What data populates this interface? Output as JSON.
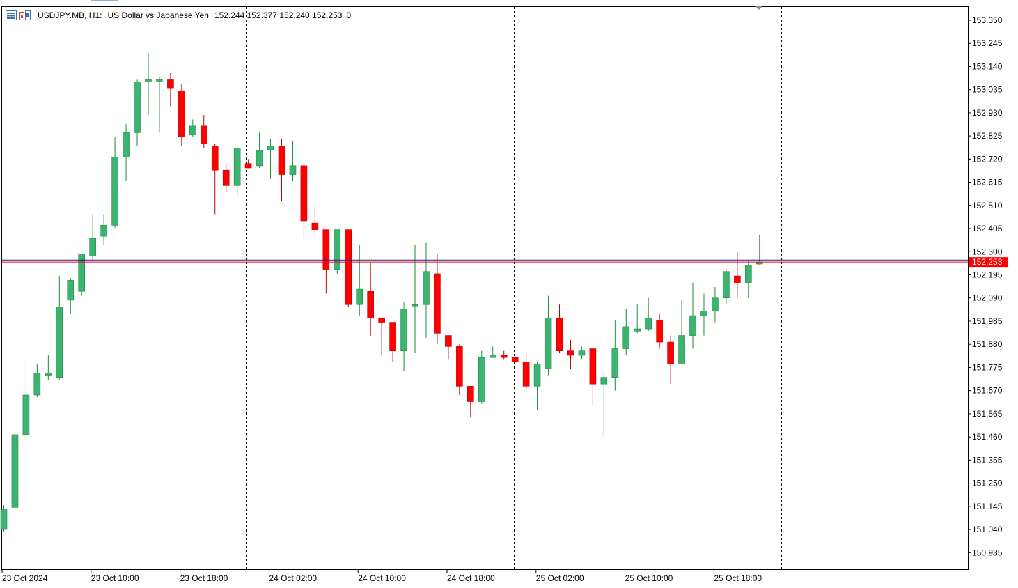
{
  "header": {
    "symbol": "USDJPY.MB, H1:",
    "description": "US Dollar vs Japanese Yen",
    "ohlc": "152.244 152.377 152.240 152.253",
    "volume": "0",
    "icons": [
      "chart-list-icon",
      "chart-objects-icon"
    ]
  },
  "colors": {
    "bull": "#3cb371",
    "bear": "#ff0000",
    "wick_bull": "#1e8a3a",
    "wick_bear": "#c00000",
    "bid_line": "#ff0000",
    "ask_line": "#1a1aa8",
    "price_tag_bg": "#ff0000",
    "price_tag_top": "#1a1aa8"
  },
  "chart_data": {
    "type": "candlestick",
    "timeframe": "H1",
    "x_tick_labels": [
      "23 Oct 2024",
      "23 Oct 10:00",
      "23 Oct 18:00",
      "24 Oct 02:00",
      "24 Oct 10:00",
      "24 Oct 18:00",
      "25 Oct 02:00",
      "25 Oct 10:00",
      "25 Oct 18:00"
    ],
    "y_tick_labels": [
      "153.350",
      "153.245",
      "153.140",
      "153.035",
      "152.930",
      "152.825",
      "152.720",
      "152.615",
      "152.510",
      "152.405",
      "152.300",
      "152.195",
      "152.090",
      "151.985",
      "151.880",
      "151.775",
      "151.670",
      "151.565",
      "151.460",
      "151.355",
      "151.250",
      "151.145",
      "151.040",
      "150.935"
    ],
    "ylim": [
      150.86,
      153.41
    ],
    "current_price": "152.253",
    "ask_price": 152.262,
    "candles": [
      {
        "o": 151.04,
        "h": 151.15,
        "l": 151.03,
        "c": 151.13
      },
      {
        "o": 151.14,
        "h": 151.48,
        "l": 151.13,
        "c": 151.47
      },
      {
        "o": 151.47,
        "h": 151.8,
        "l": 151.44,
        "c": 151.65
      },
      {
        "o": 151.65,
        "h": 151.79,
        "l": 151.64,
        "c": 151.75
      },
      {
        "o": 151.74,
        "h": 151.83,
        "l": 151.72,
        "c": 151.75
      },
      {
        "o": 151.73,
        "h": 152.19,
        "l": 151.72,
        "c": 152.05
      },
      {
        "o": 152.08,
        "h": 152.18,
        "l": 152.02,
        "c": 152.17
      },
      {
        "o": 152.12,
        "h": 152.29,
        "l": 152.1,
        "c": 152.29
      },
      {
        "o": 152.28,
        "h": 152.47,
        "l": 152.26,
        "c": 152.36
      },
      {
        "o": 152.37,
        "h": 152.47,
        "l": 152.33,
        "c": 152.42
      },
      {
        "o": 152.42,
        "h": 152.82,
        "l": 152.41,
        "c": 152.73
      },
      {
        "o": 152.73,
        "h": 152.88,
        "l": 152.62,
        "c": 152.84
      },
      {
        "o": 152.84,
        "h": 153.08,
        "l": 152.78,
        "c": 153.07
      },
      {
        "o": 153.07,
        "h": 153.2,
        "l": 152.92,
        "c": 153.08
      },
      {
        "o": 153.08,
        "h": 153.09,
        "l": 152.84,
        "c": 153.08
      },
      {
        "o": 153.08,
        "h": 153.11,
        "l": 152.96,
        "c": 153.04
      },
      {
        "o": 153.03,
        "h": 153.06,
        "l": 152.78,
        "c": 152.82
      },
      {
        "o": 152.83,
        "h": 152.9,
        "l": 152.82,
        "c": 152.87
      },
      {
        "o": 152.87,
        "h": 152.92,
        "l": 152.77,
        "c": 152.79
      },
      {
        "o": 152.78,
        "h": 152.79,
        "l": 152.47,
        "c": 152.67
      },
      {
        "o": 152.67,
        "h": 152.7,
        "l": 152.57,
        "c": 152.6
      },
      {
        "o": 152.6,
        "h": 152.78,
        "l": 152.55,
        "c": 152.77
      },
      {
        "o": 152.7,
        "h": 152.72,
        "l": 152.68,
        "c": 152.68
      },
      {
        "o": 152.69,
        "h": 152.84,
        "l": 152.68,
        "c": 152.76
      },
      {
        "o": 152.76,
        "h": 152.81,
        "l": 152.63,
        "c": 152.78
      },
      {
        "o": 152.78,
        "h": 152.81,
        "l": 152.53,
        "c": 152.65
      },
      {
        "o": 152.65,
        "h": 152.8,
        "l": 152.62,
        "c": 152.69
      },
      {
        "o": 152.69,
        "h": 152.69,
        "l": 152.36,
        "c": 152.44
      },
      {
        "o": 152.43,
        "h": 152.51,
        "l": 152.37,
        "c": 152.4
      },
      {
        "o": 152.4,
        "h": 152.4,
        "l": 152.11,
        "c": 152.22
      },
      {
        "o": 152.22,
        "h": 152.4,
        "l": 152.2,
        "c": 152.4
      },
      {
        "o": 152.4,
        "h": 152.4,
        "l": 152.05,
        "c": 152.06
      },
      {
        "o": 152.06,
        "h": 152.33,
        "l": 152.01,
        "c": 152.13
      },
      {
        "o": 152.12,
        "h": 152.25,
        "l": 151.92,
        "c": 152.0
      },
      {
        "o": 152.0,
        "h": 152.0,
        "l": 151.83,
        "c": 151.98
      },
      {
        "o": 151.98,
        "h": 151.98,
        "l": 151.8,
        "c": 151.85
      },
      {
        "o": 151.85,
        "h": 152.07,
        "l": 151.76,
        "c": 152.04
      },
      {
        "o": 152.06,
        "h": 152.33,
        "l": 151.84,
        "c": 152.06
      },
      {
        "o": 152.06,
        "h": 152.34,
        "l": 151.91,
        "c": 152.21
      },
      {
        "o": 152.2,
        "h": 152.29,
        "l": 151.88,
        "c": 151.93
      },
      {
        "o": 151.92,
        "h": 151.92,
        "l": 151.81,
        "c": 151.87
      },
      {
        "o": 151.87,
        "h": 151.88,
        "l": 151.65,
        "c": 151.69
      },
      {
        "o": 151.69,
        "h": 151.69,
        "l": 151.55,
        "c": 151.62
      },
      {
        "o": 151.62,
        "h": 151.85,
        "l": 151.61,
        "c": 151.82
      },
      {
        "o": 151.82,
        "h": 151.87,
        "l": 151.82,
        "c": 151.83
      },
      {
        "o": 151.83,
        "h": 151.85,
        "l": 151.81,
        "c": 151.82
      },
      {
        "o": 151.82,
        "h": 151.83,
        "l": 151.79,
        "c": 151.8
      },
      {
        "o": 151.8,
        "h": 151.84,
        "l": 151.68,
        "c": 151.69
      },
      {
        "o": 151.69,
        "h": 151.8,
        "l": 151.58,
        "c": 151.79
      },
      {
        "o": 151.77,
        "h": 152.1,
        "l": 151.74,
        "c": 152.0
      },
      {
        "o": 152.0,
        "h": 152.06,
        "l": 151.84,
        "c": 151.85
      },
      {
        "o": 151.85,
        "h": 151.9,
        "l": 151.77,
        "c": 151.83
      },
      {
        "o": 151.83,
        "h": 151.87,
        "l": 151.81,
        "c": 151.85
      },
      {
        "o": 151.86,
        "h": 151.86,
        "l": 151.6,
        "c": 151.7
      },
      {
        "o": 151.7,
        "h": 151.76,
        "l": 151.46,
        "c": 151.73
      },
      {
        "o": 151.73,
        "h": 151.99,
        "l": 151.67,
        "c": 151.86
      },
      {
        "o": 151.86,
        "h": 152.04,
        "l": 151.83,
        "c": 151.96
      },
      {
        "o": 151.94,
        "h": 152.06,
        "l": 151.93,
        "c": 151.95
      },
      {
        "o": 151.95,
        "h": 152.09,
        "l": 151.94,
        "c": 152.0
      },
      {
        "o": 151.99,
        "h": 152.02,
        "l": 151.86,
        "c": 151.89
      },
      {
        "o": 151.89,
        "h": 151.92,
        "l": 151.7,
        "c": 151.79
      },
      {
        "o": 151.79,
        "h": 152.08,
        "l": 151.79,
        "c": 151.92
      },
      {
        "o": 151.92,
        "h": 152.16,
        "l": 151.86,
        "c": 152.01
      },
      {
        "o": 152.01,
        "h": 152.11,
        "l": 151.92,
        "c": 152.03
      },
      {
        "o": 152.03,
        "h": 152.14,
        "l": 151.98,
        "c": 152.09
      },
      {
        "o": 152.09,
        "h": 152.22,
        "l": 152.06,
        "c": 152.21
      },
      {
        "o": 152.19,
        "h": 152.3,
        "l": 152.09,
        "c": 152.16
      },
      {
        "o": 152.16,
        "h": 152.26,
        "l": 152.09,
        "c": 152.24
      },
      {
        "o": 152.244,
        "h": 152.377,
        "l": 152.24,
        "c": 152.253
      }
    ]
  }
}
